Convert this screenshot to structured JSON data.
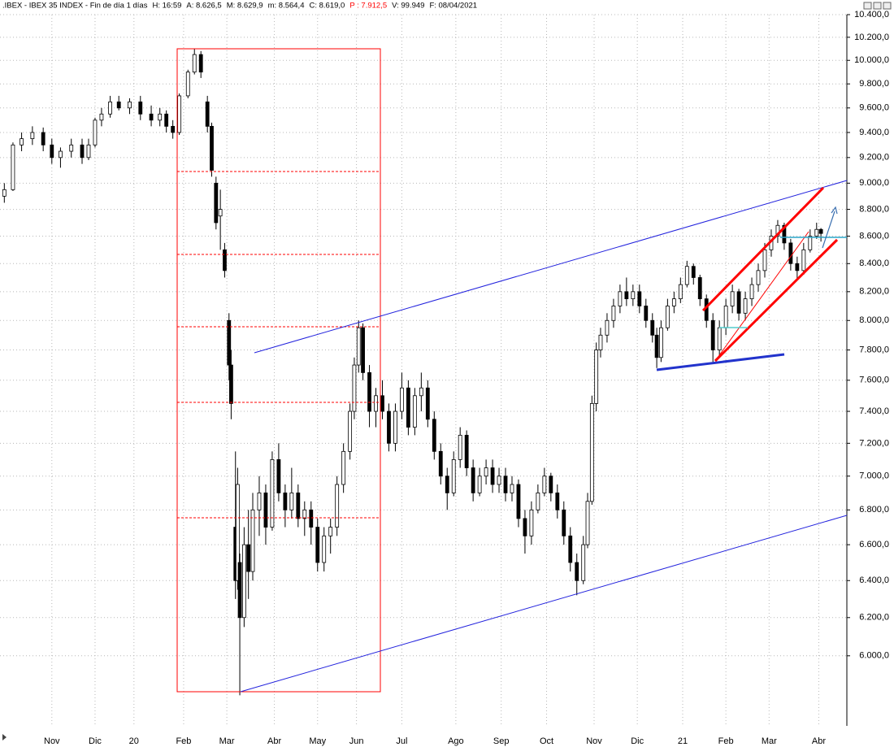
{
  "chart_data": {
    "type": "candlestick",
    "title": ".IBEX - IBEX 35 INDEX - Fin de día 1 días",
    "info": [
      "H: 16:59",
      "A: 8.626,5",
      "M: 8.629,9",
      "m: 8.564,4",
      "C: 8.619,0",
      "P : 7.912,5",
      "V: 99.949",
      "F: 08/04/2021"
    ],
    "info_colors": [
      "#000000",
      "#000000",
      "#000000",
      "#000000",
      "#000000",
      "#ff0000",
      "#000000",
      "#000000"
    ],
    "log_scale": true,
    "grid": true,
    "up_color": "#ffffff",
    "down_color": "#000000",
    "xlim": [
      0,
      392
    ],
    "xticks": [
      {
        "value": 24,
        "label": "Nov"
      },
      {
        "value": 44,
        "label": "Dic"
      },
      {
        "value": 62,
        "label": "20"
      },
      {
        "value": 85,
        "label": "Feb"
      },
      {
        "value": 105,
        "label": "Mar"
      },
      {
        "value": 127,
        "label": "Abr"
      },
      {
        "value": 147,
        "label": "May"
      },
      {
        "value": 165,
        "label": "Jun"
      },
      {
        "value": 186,
        "label": "Jul"
      },
      {
        "value": 211,
        "label": "Ago"
      },
      {
        "value": 232,
        "label": "Sep"
      },
      {
        "value": 253,
        "label": "Oct"
      },
      {
        "value": 275,
        "label": "Nov"
      },
      {
        "value": 295,
        "label": "Dic"
      },
      {
        "value": 316,
        "label": "21"
      },
      {
        "value": 336,
        "label": "Feb"
      },
      {
        "value": 356,
        "label": "Mar"
      },
      {
        "value": 379,
        "label": "Abr"
      }
    ],
    "ylim": [
      5650,
      10400
    ],
    "yticks": [
      {
        "value": 6000,
        "label": "6.000,0"
      },
      {
        "value": 6200,
        "label": "6.200,0"
      },
      {
        "value": 6400,
        "label": "6.400,0"
      },
      {
        "value": 6600,
        "label": "6.600,0"
      },
      {
        "value": 6800,
        "label": "6.800,0"
      },
      {
        "value": 7000,
        "label": "7.000,0"
      },
      {
        "value": 7200,
        "label": "7.200,0"
      },
      {
        "value": 7400,
        "label": "7.400,0"
      },
      {
        "value": 7600,
        "label": "7.600,0"
      },
      {
        "value": 7800,
        "label": "7.800,0"
      },
      {
        "value": 8000,
        "label": "8.000,0"
      },
      {
        "value": 8200,
        "label": "8.200,0"
      },
      {
        "value": 8400,
        "label": "8.400,0"
      },
      {
        "value": 8600,
        "label": "8.600,0"
      },
      {
        "value": 8800,
        "label": "8.800,0"
      },
      {
        "value": 9000,
        "label": "9.000,0"
      },
      {
        "value": 9200,
        "label": "9.200,0"
      },
      {
        "value": 9400,
        "label": "9.400,0"
      },
      {
        "value": 9600,
        "label": "9.600,0"
      },
      {
        "value": 9800,
        "label": "9.800,0"
      },
      {
        "value": 10000,
        "label": "10.000,0"
      },
      {
        "value": 10200,
        "label": "10.200,0"
      },
      {
        "value": 10400,
        "label": "10.400,0"
      }
    ],
    "x": [
      2,
      6,
      10,
      15,
      20,
      24,
      28,
      33,
      38,
      41,
      44,
      47,
      51,
      55,
      60,
      65,
      70,
      74,
      77,
      80,
      83,
      87,
      90,
      93,
      96,
      98,
      100,
      102,
      104,
      106,
      107,
      109,
      110,
      111,
      113,
      115,
      117,
      120,
      123,
      126,
      129,
      132,
      135,
      138,
      141,
      144,
      147,
      150,
      153,
      156,
      159,
      162,
      164,
      166,
      168,
      171,
      174,
      177,
      180,
      183,
      186,
      189,
      192,
      195,
      198,
      201,
      204,
      207,
      210,
      213,
      216,
      219,
      222,
      225,
      228,
      231,
      234,
      237,
      240,
      243,
      246,
      249,
      252,
      255,
      258,
      261,
      264,
      267,
      270,
      272,
      274,
      276,
      278,
      281,
      284,
      287,
      290,
      293,
      296,
      299,
      302,
      304,
      306,
      309,
      312,
      315,
      318,
      321,
      324,
      327,
      330,
      333,
      336,
      339,
      342,
      345,
      348,
      351,
      354,
      357,
      360,
      363,
      366,
      369,
      372,
      375,
      378,
      380
    ],
    "open": [
      8900,
      8950,
      9300,
      9350,
      9400,
      9300,
      9200,
      9250,
      9300,
      9200,
      9300,
      9500,
      9550,
      9650,
      9600,
      9650,
      9550,
      9500,
      9550,
      9450,
      9400,
      9700,
      9900,
      10050,
      9650,
      9450,
      9000,
      8750,
      8500,
      8000,
      7700,
      6700,
      6400,
      6500,
      6200,
      6600,
      6450,
      6800,
      6900,
      6700,
      7100,
      6900,
      6800,
      6900,
      6750,
      6800,
      6700,
      6500,
      6650,
      6700,
      6950,
      7150,
      7400,
      7700,
      7950,
      7650,
      7400,
      7500,
      7400,
      7200,
      7400,
      7550,
      7300,
      7500,
      7550,
      7350,
      7150,
      7000,
      6900,
      7100,
      7250,
      7050,
      6900,
      7000,
      7050,
      6950,
      7000,
      6900,
      6950,
      6750,
      6650,
      6800,
      6900,
      7000,
      6900,
      6800,
      6650,
      6500,
      6400,
      6600,
      6850,
      7450,
      7800,
      7900,
      8000,
      8100,
      8200,
      8150,
      8200,
      8100,
      8000,
      7900,
      7750,
      7950,
      8100,
      8150,
      8250,
      8380,
      8300,
      8150,
      8000,
      7800,
      7950,
      8100,
      8200,
      8050,
      8150,
      8250,
      8350,
      8500,
      8600,
      8680,
      8550,
      8400,
      8350,
      8500,
      8600,
      8650
    ],
    "high": [
      9000,
      9320,
      9400,
      9450,
      9440,
      9350,
      9280,
      9350,
      9350,
      9350,
      9520,
      9600,
      9700,
      9700,
      9680,
      9700,
      9620,
      9600,
      9580,
      9500,
      9720,
      9920,
      10100,
      10080,
      9700,
      9480,
      9050,
      8950,
      8550,
      8050,
      7800,
      7150,
      7050,
      6550,
      6700,
      6800,
      6900,
      7000,
      6950,
      7150,
      7200,
      6950,
      7050,
      6950,
      6850,
      6850,
      6750,
      6700,
      6750,
      7000,
      7200,
      7450,
      7750,
      8000,
      7980,
      7700,
      7550,
      7600,
      7450,
      7450,
      7650,
      7600,
      7550,
      7650,
      7600,
      7400,
      7200,
      7050,
      7150,
      7300,
      7280,
      7100,
      7050,
      7100,
      7100,
      7050,
      7050,
      7000,
      6980,
      6800,
      6850,
      6950,
      7050,
      7020,
      6950,
      6850,
      6700,
      6550,
      6650,
      6900,
      7500,
      7850,
      7950,
      8050,
      8150,
      8250,
      8300,
      8250,
      8250,
      8150,
      8050,
      7950,
      8000,
      8150,
      8200,
      8300,
      8420,
      8400,
      8320,
      8180,
      8050,
      8000,
      8150,
      8250,
      8220,
      8200,
      8300,
      8400,
      8550,
      8650,
      8720,
      8700,
      8580,
      8450,
      8550,
      8650,
      8700,
      8660
    ],
    "low": [
      8850,
      8940,
      9250,
      9300,
      9250,
      9150,
      9120,
      9200,
      9150,
      9180,
      9280,
      9450,
      9520,
      9580,
      9550,
      9500,
      9450,
      9450,
      9400,
      9350,
      9380,
      9680,
      9880,
      9850,
      9400,
      9050,
      8650,
      8500,
      8300,
      7600,
      7350,
      6300,
      6350,
      5800,
      6150,
      6300,
      6400,
      6650,
      6600,
      6680,
      6850,
      6700,
      6750,
      6700,
      6650,
      6600,
      6450,
      6450,
      6550,
      6650,
      6900,
      7100,
      7350,
      7650,
      7600,
      7300,
      7300,
      7350,
      7150,
      7150,
      7350,
      7250,
      7250,
      7400,
      7300,
      7100,
      6950,
      6800,
      6880,
      7050,
      7000,
      6850,
      6880,
      6950,
      6900,
      6900,
      6850,
      6850,
      6700,
      6550,
      6600,
      6780,
      6880,
      6850,
      6750,
      6600,
      6450,
      6320,
      6380,
      6580,
      6830,
      7400,
      7750,
      7850,
      7950,
      8050,
      8100,
      8100,
      8050,
      7950,
      7850,
      7680,
      7720,
      7930,
      8050,
      8120,
      8230,
      8250,
      8100,
      7950,
      7720,
      7750,
      7900,
      8050,
      8000,
      8000,
      8100,
      8200,
      8300,
      8450,
      8550,
      8500,
      8350,
      8280,
      8320,
      8480,
      8580,
      8560
    ],
    "close": [
      8950,
      9300,
      9350,
      9400,
      9300,
      9200,
      9250,
      9300,
      9200,
      9300,
      9500,
      9550,
      9650,
      9600,
      9650,
      9550,
      9500,
      9550,
      9450,
      9400,
      9700,
      9900,
      10050,
      9900,
      9450,
      9100,
      8700,
      8800,
      8350,
      7700,
      7450,
      6400,
      6950,
      6200,
      6600,
      6450,
      6800,
      6900,
      6700,
      7100,
      6900,
      6800,
      6900,
      6750,
      6800,
      6700,
      6500,
      6650,
      6700,
      6950,
      7150,
      7400,
      7700,
      7950,
      7650,
      7400,
      7500,
      7400,
      7200,
      7400,
      7550,
      7300,
      7500,
      7550,
      7350,
      7150,
      7000,
      6900,
      7100,
      7250,
      7050,
      6900,
      7000,
      7050,
      6950,
      7000,
      6900,
      6950,
      6750,
      6650,
      6800,
      6900,
      7000,
      6900,
      6800,
      6650,
      6500,
      6400,
      6600,
      6850,
      7450,
      7800,
      7900,
      8000,
      8100,
      8200,
      8150,
      8200,
      8100,
      8000,
      7900,
      7750,
      7950,
      8100,
      8150,
      8250,
      8380,
      8300,
      8150,
      8000,
      7800,
      7950,
      8100,
      8200,
      8050,
      8150,
      8250,
      8350,
      8500,
      8600,
      8680,
      8550,
      8400,
      8350,
      8500,
      8600,
      8650,
      8620
    ]
  }
}
